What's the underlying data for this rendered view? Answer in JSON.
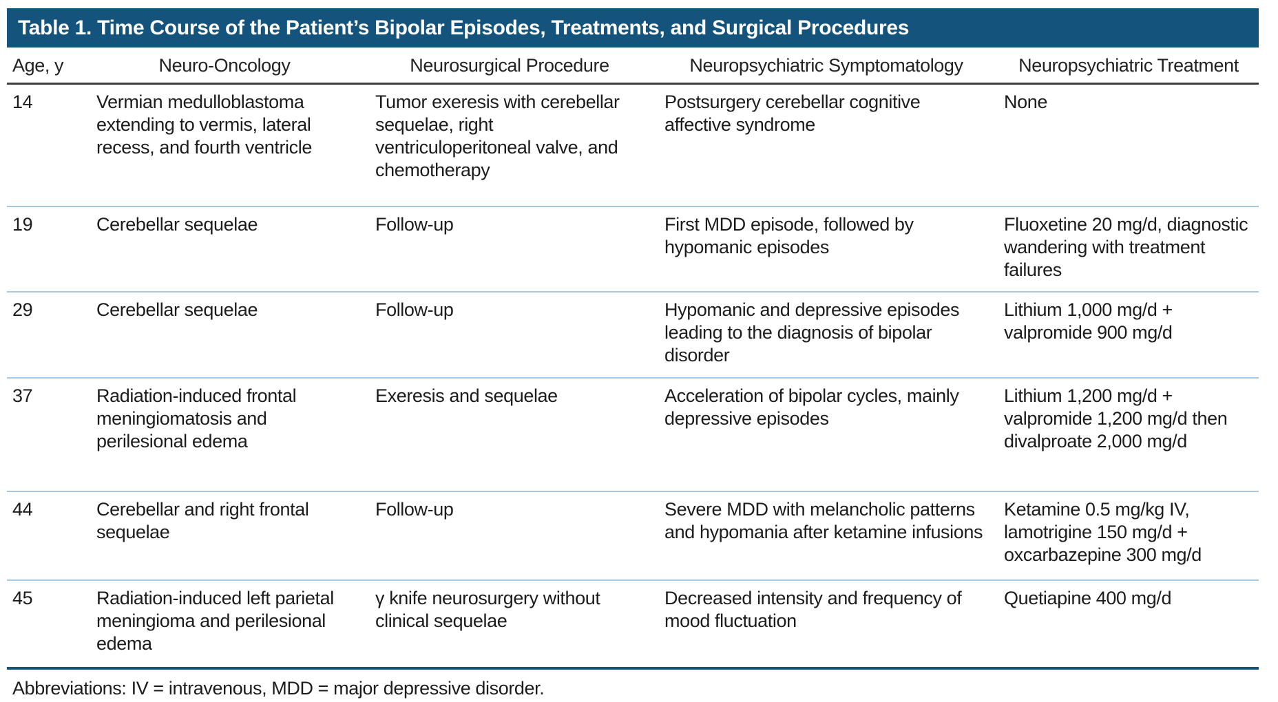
{
  "table": {
    "title": "Table 1. Time Course of the Patient’s Bipolar Episodes, Treatments, and Surgical Procedures",
    "columns": [
      "Age, y",
      "Neuro-Oncology",
      "Neurosurgical Procedure",
      "Neuropsychiatric Symptomatology",
      "Neuropsychiatric Treatment"
    ],
    "rows": [
      {
        "age": "14",
        "oncology": "Vermian medulloblastoma extending to vermis, lateral recess, and fourth ventricle",
        "procedure": "Tumor exeresis with cerebellar sequelae, right ventriculoperitoneal valve, and chemotherapy",
        "symptomatology": "Postsurgery cerebellar cognitive affective syndrome",
        "treatment": "None"
      },
      {
        "age": "19",
        "oncology": "Cerebellar sequelae",
        "procedure": "Follow-up",
        "symptomatology": "First MDD episode, followed by hypomanic episodes",
        "treatment": "Fluoxetine 20 mg/d, diagnostic wandering with treatment failures"
      },
      {
        "age": "29",
        "oncology": "Cerebellar sequelae",
        "procedure": "Follow-up",
        "symptomatology": "Hypomanic and depressive episodes leading to the diagnosis of bipolar disorder",
        "treatment": "Lithium 1,000 mg/d + valpromide 900 mg/d"
      },
      {
        "age": "37",
        "oncology": "Radiation-induced frontal meningiomatosis and perilesional edema",
        "procedure": "Exeresis and sequelae",
        "symptomatology": "Acceleration of bipolar cycles, mainly depressive episodes",
        "treatment": "Lithium 1,200 mg/d + valpromide 1,200 mg/d then divalproate 2,000 mg/d"
      },
      {
        "age": "44",
        "oncology": "Cerebellar and right frontal sequelae",
        "procedure": "Follow-up",
        "symptomatology": "Severe MDD with melancholic patterns and hypomania after ketamine infusions",
        "treatment": "Ketamine 0.5 mg/kg IV, lamotrigine 150 mg/d + oxcarbazepine 300 mg/d"
      },
      {
        "age": "45",
        "oncology": "Radiation-induced left parietal meningioma and perilesional edema",
        "procedure": "γ knife neurosurgery without clinical sequelae",
        "symptomatology": "Decreased intensity and frequency of mood fluctuation",
        "treatment": "Quetiapine 400 mg/d"
      }
    ],
    "footnote": "Abbreviations: IV = intravenous, MDD = major depressive disorder.",
    "colors": {
      "title_bar": "#14537C",
      "row_divider": "#aac7e2",
      "header_rule": "#3b3b3b"
    }
  }
}
